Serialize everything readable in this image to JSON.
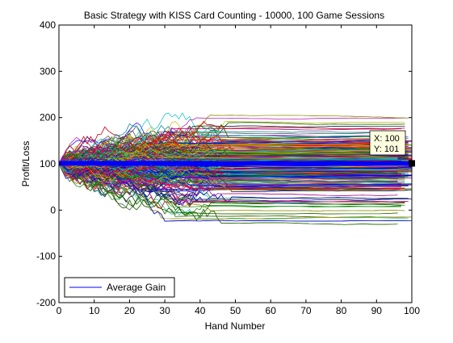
{
  "figure": {
    "window_background": "#ffffff",
    "axes_background": "#ffffff"
  },
  "chart_data": {
    "type": "line",
    "title": "Basic Strategy with KISS Card Counting - 10000, 100 Game Sessions",
    "xlabel": "Hand Number",
    "ylabel": "Profit/Loss",
    "xlim": [
      0,
      100
    ],
    "ylim": [
      -200,
      400
    ],
    "xticks": [
      0,
      10,
      20,
      30,
      40,
      50,
      60,
      70,
      80,
      90,
      100
    ],
    "yticks": [
      -200,
      -100,
      0,
      100,
      200,
      300,
      400
    ],
    "grid": false,
    "legend": {
      "position": "bottom-left",
      "entries": [
        "Average Gain"
      ]
    },
    "highlighted_series": {
      "name": "Average Gain",
      "color": "#0000ff",
      "x": [
        0,
        100
      ],
      "y": [
        101,
        101
      ]
    },
    "background_series": {
      "count": 10000,
      "start_value": 100,
      "session_end_range": [
        0,
        50
      ],
      "final_value_range": [
        -160,
        310
      ],
      "colors": [
        "#0000ff",
        "#008000",
        "#ff0000",
        "#00bfbf",
        "#bf00bf",
        "#bfbf00",
        "#404040"
      ]
    },
    "datatip": {
      "x_label": "X: 100",
      "y_label": "Y: 101",
      "x": 100,
      "y": 101
    }
  }
}
